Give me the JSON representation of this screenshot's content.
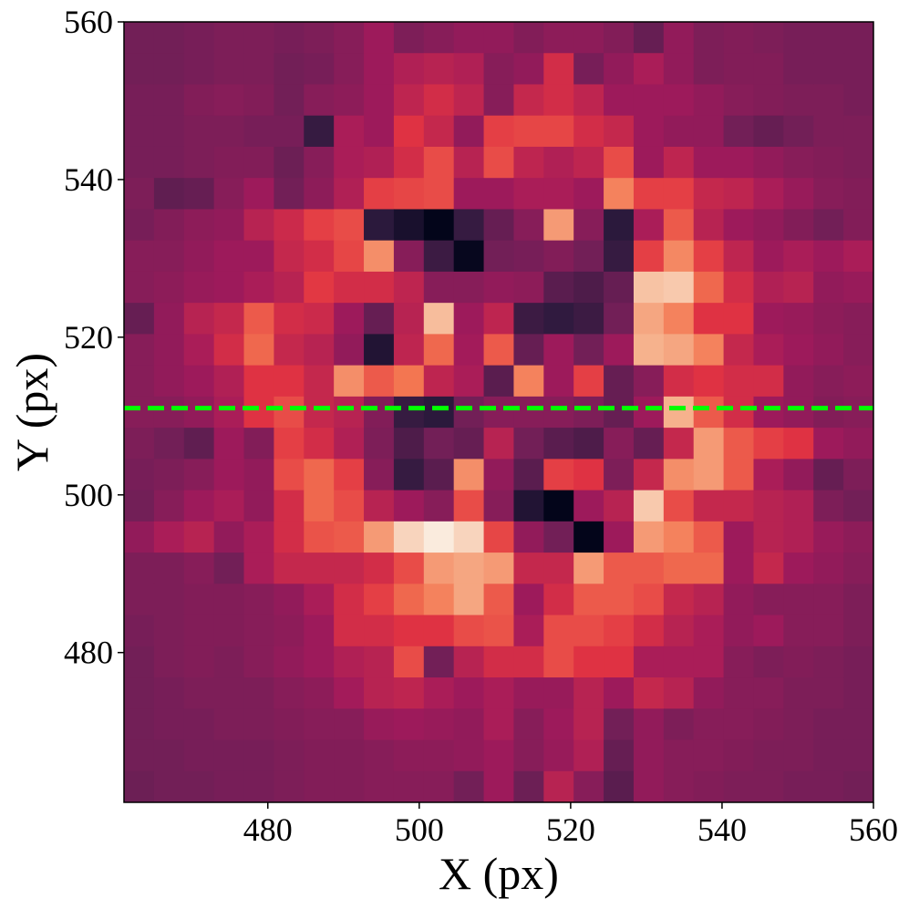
{
  "chart_data": {
    "type": "heatmap",
    "xlabel": "X (px)",
    "ylabel": "Y (px)",
    "xlim": [
      461,
      560
    ],
    "ylim": [
      461,
      560
    ],
    "xticks": [
      480,
      500,
      520,
      540,
      560
    ],
    "yticks": [
      480,
      500,
      520,
      540,
      560
    ],
    "colormap": "rocket",
    "hline": {
      "y": 511,
      "color": "#00ff00",
      "style": "dashed"
    },
    "z": [
      [
        2.2,
        2.2,
        2.3,
        2.4,
        2.4,
        2.3,
        2.4,
        2.6,
        3.0,
        2.4,
        2.6,
        2.8,
        2.8,
        2.5,
        2.7,
        2.7,
        2.5,
        2.0,
        2.8,
        2.4,
        2.5,
        2.4,
        2.3,
        2.3,
        2.3
      ],
      [
        2.2,
        2.2,
        2.3,
        2.4,
        2.4,
        2.2,
        2.3,
        2.6,
        3.0,
        3.3,
        3.4,
        3.3,
        2.6,
        2.8,
        3.8,
        2.3,
        2.8,
        3.2,
        2.8,
        2.4,
        2.5,
        2.5,
        2.3,
        2.3,
        2.3
      ],
      [
        2.3,
        2.3,
        2.5,
        2.6,
        2.5,
        2.2,
        2.6,
        2.7,
        3.0,
        3.5,
        3.8,
        3.5,
        2.6,
        3.6,
        3.8,
        3.5,
        3.0,
        3.0,
        3.0,
        2.8,
        2.6,
        2.5,
        2.4,
        2.4,
        2.3
      ],
      [
        2.3,
        2.3,
        2.4,
        2.4,
        2.3,
        2.3,
        1.2,
        3.2,
        3.0,
        4.0,
        3.6,
        2.8,
        4.2,
        4.3,
        4.3,
        3.8,
        3.6,
        3.0,
        2.8,
        2.8,
        2.2,
        2.0,
        2.2,
        2.4,
        2.4
      ],
      [
        2.3,
        2.3,
        2.4,
        2.5,
        2.5,
        2.1,
        2.6,
        3.2,
        3.3,
        3.8,
        4.4,
        3.4,
        4.4,
        3.5,
        3.3,
        3.5,
        4.4,
        3.0,
        3.5,
        3.0,
        3.0,
        2.8,
        2.6,
        2.5,
        2.4
      ],
      [
        2.4,
        1.9,
        2.0,
        2.6,
        3.0,
        2.2,
        2.7,
        3.3,
        4.2,
        4.3,
        4.4,
        3.0,
        3.0,
        3.2,
        3.2,
        3.0,
        5.2,
        4.2,
        4.2,
        3.6,
        3.5,
        3.2,
        2.9,
        2.6,
        2.5
      ],
      [
        2.3,
        2.5,
        2.7,
        2.8,
        3.4,
        3.7,
        4.2,
        4.4,
        1.0,
        0.6,
        0.1,
        1.2,
        2.0,
        2.6,
        5.6,
        2.6,
        1.0,
        3.2,
        4.6,
        3.4,
        3.0,
        2.8,
        2.5,
        2.2,
        2.5
      ],
      [
        2.6,
        2.6,
        2.8,
        3.0,
        3.0,
        3.6,
        3.8,
        4.3,
        5.4,
        2.6,
        1.3,
        0.2,
        2.2,
        2.3,
        2.5,
        2.2,
        1.2,
        4.2,
        5.3,
        4.2,
        3.5,
        3.0,
        3.2,
        3.0,
        3.2
      ],
      [
        2.6,
        2.7,
        2.9,
        3.0,
        3.2,
        3.4,
        4.1,
        3.8,
        3.8,
        3.5,
        2.6,
        2.6,
        2.8,
        2.7,
        1.8,
        1.6,
        2.0,
        6.3,
        6.4,
        4.8,
        3.8,
        3.3,
        3.4,
        2.8,
        2.9
      ],
      [
        2.0,
        2.8,
        3.4,
        3.6,
        4.6,
        3.8,
        3.7,
        3.0,
        2.0,
        3.4,
        6.2,
        3.0,
        3.5,
        1.3,
        1.1,
        1.3,
        2.2,
        5.8,
        5.2,
        4.0,
        4.0,
        3.0,
        2.9,
        2.7,
        2.6
      ],
      [
        2.6,
        2.8,
        3.2,
        3.8,
        4.8,
        3.6,
        3.4,
        2.8,
        0.8,
        3.5,
        4.8,
        3.1,
        4.6,
        2.0,
        3.0,
        2.2,
        3.0,
        6.0,
        5.8,
        5.2,
        3.6,
        3.2,
        3.0,
        2.8,
        2.6
      ],
      [
        2.6,
        2.8,
        3.0,
        3.3,
        4.0,
        4.0,
        3.6,
        5.4,
        4.6,
        5.0,
        3.5,
        3.2,
        1.8,
        5.2,
        3.0,
        4.2,
        2.0,
        2.6,
        3.8,
        4.0,
        3.8,
        3.8,
        2.8,
        2.6,
        2.7
      ],
      [
        2.6,
        2.6,
        2.8,
        3.2,
        4.0,
        4.4,
        3.6,
        3.4,
        2.5,
        1.2,
        1.0,
        2.2,
        2.6,
        2.6,
        2.6,
        2.4,
        2.0,
        3.0,
        6.0,
        4.6,
        3.8,
        3.0,
        2.8,
        2.5,
        2.6
      ],
      [
        2.4,
        2.2,
        1.9,
        3.0,
        2.5,
        4.2,
        3.8,
        3.3,
        2.4,
        1.6,
        2.2,
        2.0,
        3.4,
        2.2,
        1.8,
        1.6,
        2.6,
        2.0,
        3.6,
        5.6,
        4.6,
        4.2,
        4.0,
        3.0,
        2.8
      ],
      [
        2.3,
        2.4,
        2.6,
        3.0,
        2.8,
        4.4,
        4.8,
        4.2,
        2.6,
        1.2,
        1.8,
        5.4,
        2.8,
        1.8,
        4.2,
        4.0,
        2.4,
        3.6,
        5.4,
        5.6,
        4.6,
        3.2,
        2.8,
        2.0,
        2.4
      ],
      [
        2.2,
        2.6,
        3.0,
        3.2,
        2.8,
        3.8,
        4.8,
        4.4,
        3.4,
        3.0,
        2.6,
        4.4,
        2.6,
        0.8,
        0.1,
        3.0,
        3.4,
        6.4,
        4.4,
        3.6,
        3.6,
        3.4,
        3.3,
        2.4,
        2.2
      ],
      [
        2.8,
        3.2,
        3.4,
        2.8,
        3.2,
        3.8,
        4.5,
        4.6,
        5.6,
        6.6,
        7.0,
        6.6,
        4.3,
        2.8,
        2.2,
        0.1,
        3.0,
        5.6,
        5.2,
        4.6,
        3.0,
        3.4,
        3.3,
        2.9,
        2.7
      ],
      [
        2.4,
        2.4,
        2.6,
        2.2,
        3.2,
        3.6,
        3.6,
        3.6,
        3.8,
        4.4,
        5.6,
        5.8,
        5.6,
        3.6,
        3.6,
        5.6,
        4.6,
        4.6,
        4.8,
        4.8,
        3.0,
        3.6,
        3.0,
        2.8,
        2.6
      ],
      [
        2.4,
        2.4,
        2.5,
        2.5,
        2.6,
        2.8,
        3.2,
        3.8,
        4.2,
        4.8,
        5.2,
        5.8,
        4.6,
        3.0,
        3.8,
        4.6,
        4.6,
        4.4,
        3.6,
        3.4,
        2.8,
        2.6,
        2.6,
        2.6,
        2.4
      ],
      [
        2.3,
        2.4,
        2.5,
        2.5,
        2.6,
        2.7,
        3.0,
        3.8,
        3.8,
        4.0,
        4.0,
        4.4,
        4.5,
        3.2,
        4.4,
        4.4,
        4.2,
        3.8,
        3.4,
        3.2,
        2.8,
        3.0,
        2.6,
        2.6,
        2.4
      ],
      [
        2.2,
        2.4,
        2.5,
        2.4,
        2.6,
        2.8,
        3.0,
        3.3,
        3.4,
        4.4,
        2.2,
        3.4,
        3.8,
        3.8,
        4.4,
        4.0,
        4.0,
        3.2,
        3.2,
        3.2,
        2.6,
        2.4,
        2.5,
        2.4,
        2.3
      ],
      [
        2.2,
        2.3,
        2.4,
        2.4,
        2.4,
        2.6,
        2.7,
        3.1,
        3.4,
        3.5,
        3.2,
        3.0,
        3.2,
        2.9,
        2.9,
        3.4,
        3.0,
        3.6,
        3.4,
        2.8,
        2.6,
        2.6,
        2.4,
        2.4,
        2.3
      ],
      [
        2.2,
        2.3,
        2.3,
        2.4,
        2.4,
        2.5,
        2.6,
        2.6,
        2.9,
        3.0,
        2.9,
        2.8,
        3.2,
        2.6,
        3.0,
        3.4,
        2.2,
        2.8,
        2.4,
        2.6,
        2.6,
        2.5,
        2.4,
        2.3,
        2.3
      ],
      [
        2.2,
        2.2,
        2.3,
        2.3,
        2.3,
        2.4,
        2.5,
        2.5,
        2.6,
        2.7,
        2.7,
        2.8,
        3.0,
        2.6,
        2.9,
        3.3,
        2.0,
        2.8,
        2.6,
        2.6,
        2.5,
        2.4,
        2.4,
        2.3,
        2.3
      ],
      [
        2.1,
        2.2,
        2.2,
        2.3,
        2.3,
        2.4,
        2.5,
        2.5,
        2.6,
        2.6,
        2.6,
        2.2,
        3.0,
        2.1,
        3.4,
        2.6,
        1.8,
        2.8,
        2.6,
        2.5,
        2.4,
        2.4,
        2.3,
        2.3,
        2.2
      ]
    ]
  }
}
